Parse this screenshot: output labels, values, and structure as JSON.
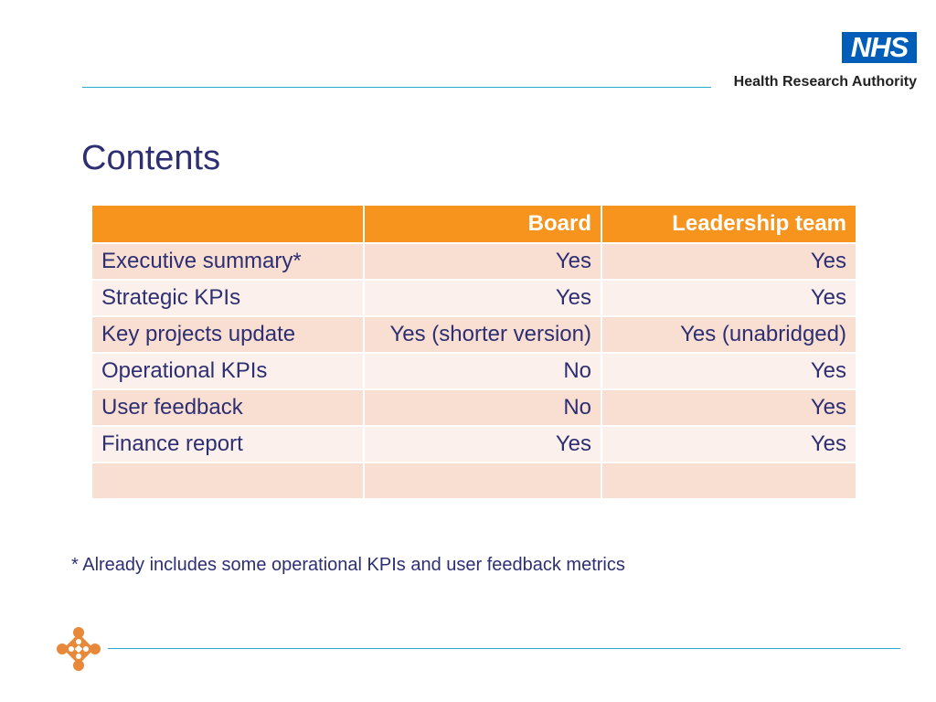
{
  "header": {
    "logo_text": "NHS",
    "org_name": "Health Research Authority",
    "brand_color": "#005eb8",
    "rule_color": "#2aa9d1"
  },
  "title": "Contents",
  "table": {
    "columns": [
      "",
      "Board",
      "Leadership team"
    ],
    "header_color": "#f7941d",
    "rows": [
      {
        "item": "Executive summary*",
        "board": "Yes",
        "leadership": "Yes"
      },
      {
        "item": "Strategic KPIs",
        "board": "Yes",
        "leadership": "Yes"
      },
      {
        "item": "Key projects update",
        "board": "Yes (shorter version)",
        "leadership": "Yes (unabridged)"
      },
      {
        "item": "Operational KPIs",
        "board": "No",
        "leadership": "Yes"
      },
      {
        "item": "User feedback",
        "board": "No",
        "leadership": "Yes"
      },
      {
        "item": "Finance report",
        "board": "Yes",
        "leadership": "Yes"
      },
      {
        "item": "",
        "board": "",
        "leadership": ""
      }
    ]
  },
  "footnote": "* Already includes some operational KPIs and user feedback metrics",
  "footer": {
    "mark_icon": "hra-flower-logo-icon",
    "mark_color": "#e8893a"
  }
}
